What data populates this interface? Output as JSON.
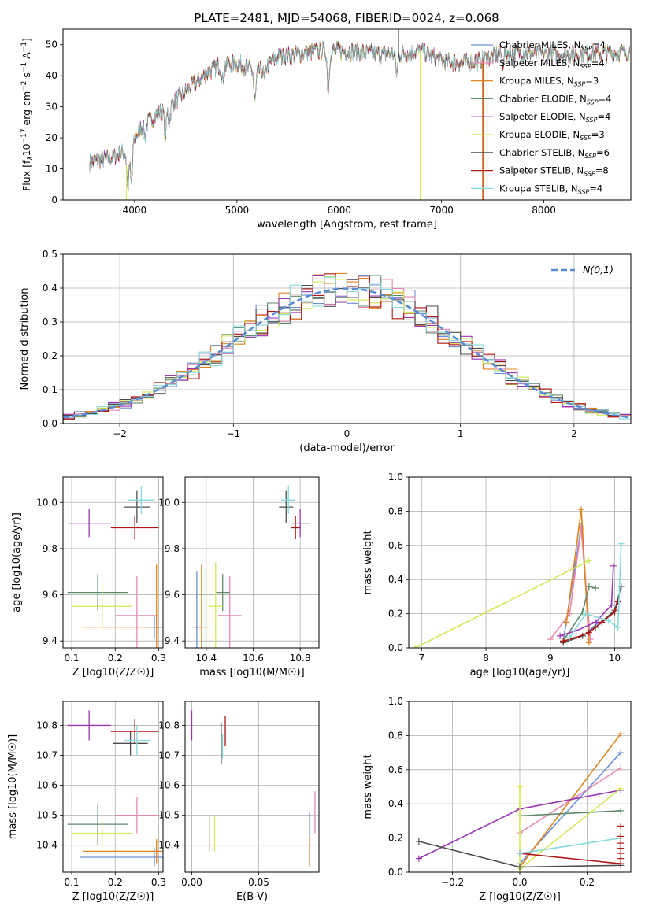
{
  "page_title": "PLATE=2481, MJD=54068, FIBERID=0024, z=0.068",
  "series_colors": {
    "chabrier_miles": "#6a8fd4",
    "salpeter_miles": "#e887b5",
    "kroupa_miles": "#e0821e",
    "chabrier_elodie": "#5f8a6a",
    "salpeter_elodie": "#9a34b5",
    "kroupa_elodie": "#d3e85a",
    "chabrier_stelib": "#4d4d4d",
    "salpeter_stelib": "#b01515",
    "kroupa_stelib": "#86d9dc"
  },
  "chart_data": [
    {
      "id": "spectrum",
      "type": "line",
      "xlabel": "wavelength [Angstrom, rest frame]",
      "ylabel": "Flux [f_λ10^-17 erg cm^-2 s^-1 A^-1]",
      "xlim": [
        3300,
        8850
      ],
      "ylim": [
        0,
        55
      ],
      "xticks": [
        4000,
        5000,
        6000,
        7000,
        8000
      ],
      "yticks": [
        0,
        10,
        20,
        30,
        40,
        50
      ],
      "grid": false,
      "legend_position": "right",
      "legend": [
        {
          "key": "chabrier_miles",
          "label": "Chabrier MILES, N",
          "n": "4"
        },
        {
          "key": "salpeter_miles",
          "label": "Salpeter MILES, N",
          "n": "4"
        },
        {
          "key": "kroupa_miles",
          "label": "Kroupa MILES, N",
          "n": "3"
        },
        {
          "key": "chabrier_elodie",
          "label": "Chabrier ELODIE, N",
          "n": "4"
        },
        {
          "key": "salpeter_elodie",
          "label": "Salpeter ELODIE, N",
          "n": "4"
        },
        {
          "key": "kroupa_elodie",
          "label": "Kroupa ELODIE, N",
          "n": "3"
        },
        {
          "key": "chabrier_stelib",
          "label": "Chabrier STELIB, N",
          "n": "6"
        },
        {
          "key": "salpeter_stelib",
          "label": "Salpeter STELIB, N",
          "n": "8"
        },
        {
          "key": "kroupa_stelib",
          "label": "Kroupa STELIB, N",
          "n": "4"
        }
      ],
      "legend_subscript": "SSP",
      "continuum": {
        "x": [
          3560,
          3800,
          3950,
          4050,
          4200,
          4400,
          4600,
          4800,
          5000,
          5200,
          5400,
          5600,
          5800,
          6000,
          6200,
          6400,
          6600,
          6800,
          7000,
          7200,
          7400,
          7600,
          7800,
          8000,
          8400,
          8800
        ],
        "y": [
          12,
          14,
          16,
          23,
          27,
          32,
          38,
          43,
          44,
          41,
          46,
          47,
          48,
          48,
          47.5,
          47,
          47,
          48,
          45,
          44,
          45,
          47.5,
          47.5,
          47,
          47,
          47.5
        ]
      },
      "absorption_lines": [
        {
          "x": 3934,
          "depth": 12
        },
        {
          "x": 3969,
          "depth": 12
        },
        {
          "x": 4102,
          "depth": 4
        },
        {
          "x": 4300,
          "depth": 9
        },
        {
          "x": 4340,
          "depth": 5
        },
        {
          "x": 4861,
          "depth": 5
        },
        {
          "x": 5175,
          "depth": 10
        },
        {
          "x": 5270,
          "depth": 4
        },
        {
          "x": 5893,
          "depth": 12
        },
        {
          "x": 6563,
          "depth": 6
        },
        {
          "x": 7600,
          "depth": 3
        }
      ],
      "spikes": [
        {
          "key": "kroupa_elodie",
          "x": 3920,
          "to": 0
        },
        {
          "key": "kroupa_elodie",
          "x": 6790,
          "to": 0
        },
        {
          "key": "salpeter_stelib",
          "x": 7405,
          "to": 0
        },
        {
          "key": "kroupa_miles",
          "x": 7400,
          "to": 0
        },
        {
          "key": "chabrier_stelib",
          "x": 6580,
          "to": 56
        }
      ]
    },
    {
      "id": "residuals",
      "type": "histogram",
      "xlabel": "(data-model)/error",
      "ylabel": "Normed distribution",
      "xlim": [
        -2.5,
        2.5
      ],
      "ylim": [
        0,
        0.5
      ],
      "xticks": [
        -2,
        -1,
        0,
        1,
        2
      ],
      "yticks": [
        0.0,
        0.1,
        0.2,
        0.3,
        0.4,
        0.5
      ],
      "grid": true,
      "legend_position": "top-right",
      "normal_label": "N(0,1)",
      "normal_color": "#5b8bd6",
      "bin_width": 0.1
    },
    {
      "id": "age_vs_Z",
      "type": "scatter",
      "xlabel": "Z [log10(Z/Z☉)]",
      "ylabel": "age [log10(age/yr)]",
      "xlim": [
        0.08,
        0.31
      ],
      "ylim": [
        9.37,
        10.11
      ],
      "xticks": [
        0.1,
        0.2,
        0.3
      ],
      "yticks": [
        9.4,
        9.6,
        9.8,
        10.0
      ],
      "grid": true,
      "points": [
        {
          "key": "chabrier_miles",
          "x": 0.29,
          "xerr": 0.02,
          "y": 9.46,
          "yerr": 0.05
        },
        {
          "key": "salpeter_miles",
          "x": 0.25,
          "xerr": 0.05,
          "y": 9.51,
          "yerr": 0.17
        },
        {
          "key": "kroupa_miles",
          "x": 0.295,
          "xerr": 0.17,
          "y": 9.46,
          "yerr": 0.27
        },
        {
          "key": "chabrier_elodie",
          "x": 0.16,
          "xerr": 0.07,
          "y": 9.61,
          "yerr": 0.08
        },
        {
          "key": "salpeter_elodie",
          "x": 0.14,
          "xerr": 0.05,
          "y": 9.91,
          "yerr": 0.06
        },
        {
          "key": "kroupa_elodie",
          "x": 0.17,
          "xerr": 0.07,
          "y": 9.55,
          "yerr": 0.1
        },
        {
          "key": "chabrier_stelib",
          "x": 0.25,
          "xerr": 0.03,
          "y": 9.98,
          "yerr": 0.07
        },
        {
          "key": "salpeter_stelib",
          "x": 0.245,
          "xerr": 0.055,
          "y": 9.89,
          "yerr": 0.05
        },
        {
          "key": "kroupa_stelib",
          "x": 0.26,
          "xerr": 0.03,
          "y": 10.01,
          "yerr": 0.06
        }
      ]
    },
    {
      "id": "age_vs_mass",
      "type": "scatter",
      "xlabel": "mass [log10(M/M☉)]",
      "ylabel": "",
      "xlim": [
        10.31,
        10.88
      ],
      "ylim": [
        9.37,
        10.11
      ],
      "xticks": [
        10.4,
        10.6,
        10.8
      ],
      "yticks": [
        9.4,
        9.6,
        9.8,
        10.0
      ],
      "grid": true,
      "points": [
        {
          "key": "chabrier_miles",
          "x": 10.36,
          "xerr": 0.02,
          "y": 9.46,
          "yerr": 0.24
        },
        {
          "key": "salpeter_miles",
          "x": 10.5,
          "xerr": 0.05,
          "y": 9.51,
          "yerr": 0.17
        },
        {
          "key": "kroupa_miles",
          "x": 10.38,
          "xerr": 0.03,
          "y": 9.46,
          "yerr": 0.27
        },
        {
          "key": "chabrier_elodie",
          "x": 10.47,
          "xerr": 0.03,
          "y": 9.61,
          "yerr": 0.08
        },
        {
          "key": "salpeter_elodie",
          "x": 10.8,
          "xerr": 0.04,
          "y": 9.91,
          "yerr": 0.06
        },
        {
          "key": "kroupa_elodie",
          "x": 10.44,
          "xerr": 0.03,
          "y": 9.55,
          "yerr": 0.19
        },
        {
          "key": "chabrier_stelib",
          "x": 10.74,
          "xerr": 0.03,
          "y": 9.98,
          "yerr": 0.07
        },
        {
          "key": "salpeter_stelib",
          "x": 10.78,
          "xerr": 0.02,
          "y": 9.89,
          "yerr": 0.05
        },
        {
          "key": "kroupa_stelib",
          "x": 10.75,
          "xerr": 0.03,
          "y": 10.01,
          "yerr": 0.06
        }
      ]
    },
    {
      "id": "weight_vs_age",
      "type": "line",
      "xlabel": "age [log10(age/yr)]",
      "ylabel": "mass weight",
      "xlim": [
        6.8,
        10.25
      ],
      "ylim": [
        0,
        1
      ],
      "xticks": [
        7,
        8,
        9,
        10
      ],
      "yticks": [
        0.0,
        0.2,
        0.4,
        0.6,
        0.8,
        1.0
      ],
      "grid": true,
      "series": [
        {
          "key": "chabrier_miles",
          "x": [
            9.2,
            9.48,
            9.6,
            9.75
          ],
          "y": [
            0.04,
            0.71,
            0.1,
            0.15
          ]
        },
        {
          "key": "salpeter_miles",
          "x": [
            9.0,
            9.3,
            9.48,
            9.62
          ],
          "y": [
            0.05,
            0.2,
            0.7,
            0.05
          ]
        },
        {
          "key": "kroupa_miles",
          "x": [
            9.25,
            9.48,
            9.6
          ],
          "y": [
            0.15,
            0.81,
            0.03
          ]
        },
        {
          "key": "chabrier_elodie",
          "x": [
            9.2,
            9.5,
            9.6,
            9.7
          ],
          "y": [
            0.04,
            0.21,
            0.36,
            0.35
          ]
        },
        {
          "key": "salpeter_elodie",
          "x": [
            9.15,
            9.4,
            9.7,
            9.95,
            9.98
          ],
          "y": [
            0.07,
            0.1,
            0.15,
            0.25,
            0.48
          ]
        },
        {
          "key": "kroupa_elodie",
          "x": [
            6.9,
            9.6
          ],
          "y": [
            0.0,
            0.51
          ]
        },
        {
          "key": "chabrier_stelib",
          "x": [
            9.2,
            9.5,
            9.7,
            10.0,
            10.1
          ],
          "y": [
            0.03,
            0.07,
            0.12,
            0.22,
            0.36
          ]
        },
        {
          "key": "salpeter_stelib",
          "x": [
            9.2,
            9.4,
            9.6,
            9.8,
            10.0,
            10.05
          ],
          "y": [
            0.04,
            0.06,
            0.09,
            0.15,
            0.21,
            0.27
          ]
        },
        {
          "key": "kroupa_stelib",
          "x": [
            9.3,
            9.55,
            9.9,
            10.05,
            10.1
          ],
          "y": [
            0.06,
            0.2,
            0.16,
            0.12,
            0.61
          ]
        }
      ]
    },
    {
      "id": "mass_vs_Z",
      "type": "scatter",
      "xlabel": "Z [log10(Z/Z☉)]",
      "ylabel": "mass [log10(M/M☉)]",
      "xlim": [
        0.08,
        0.31
      ],
      "ylim": [
        10.31,
        10.88
      ],
      "xticks": [
        0.1,
        0.2,
        0.3
      ],
      "yticks": [
        10.4,
        10.5,
        10.6,
        10.7,
        10.8
      ],
      "grid": true,
      "points": [
        {
          "key": "chabrier_miles",
          "x": 0.29,
          "xerr": 0.17,
          "y": 10.36,
          "yerr": 0.03
        },
        {
          "key": "salpeter_miles",
          "x": 0.25,
          "xerr": 0.05,
          "y": 10.5,
          "yerr": 0.06
        },
        {
          "key": "kroupa_miles",
          "x": 0.295,
          "xerr": 0.17,
          "y": 10.38,
          "yerr": 0.04
        },
        {
          "key": "chabrier_elodie",
          "x": 0.16,
          "xerr": 0.07,
          "y": 10.47,
          "yerr": 0.07
        },
        {
          "key": "salpeter_elodie",
          "x": 0.14,
          "xerr": 0.05,
          "y": 10.8,
          "yerr": 0.05
        },
        {
          "key": "kroupa_elodie",
          "x": 0.17,
          "xerr": 0.07,
          "y": 10.44,
          "yerr": 0.05
        },
        {
          "key": "chabrier_stelib",
          "x": 0.235,
          "xerr": 0.04,
          "y": 10.74,
          "yerr": 0.04
        },
        {
          "key": "salpeter_stelib",
          "x": 0.245,
          "xerr": 0.055,
          "y": 10.78,
          "yerr": 0.04
        },
        {
          "key": "kroupa_stelib",
          "x": 0.25,
          "xerr": 0.03,
          "y": 10.75,
          "yerr": 0.05
        }
      ]
    },
    {
      "id": "mass_vs_ebv",
      "type": "scatter",
      "xlabel": "E(B-V)",
      "ylabel": "",
      "xlim": [
        -0.005,
        0.095
      ],
      "ylim": [
        10.31,
        10.88
      ],
      "xticks": [
        0.0,
        0.05
      ],
      "yticks": [
        10.4,
        10.5,
        10.6,
        10.7,
        10.8
      ],
      "grid": true,
      "points": [
        {
          "key": "chabrier_miles",
          "x": 0.088,
          "xerr": 0,
          "y": 10.42,
          "yerr": 0.09
        },
        {
          "key": "salpeter_miles",
          "x": 0.092,
          "xerr": 0,
          "y": 10.51,
          "yerr": 0.07
        },
        {
          "key": "kroupa_miles",
          "x": 0.088,
          "xerr": 0,
          "y": 10.38,
          "yerr": 0.05
        },
        {
          "key": "chabrier_elodie",
          "x": 0.013,
          "xerr": 0,
          "y": 10.44,
          "yerr": 0.06
        },
        {
          "key": "salpeter_elodie",
          "x": 0.0,
          "xerr": 0,
          "y": 10.8,
          "yerr": 0.05
        },
        {
          "key": "kroupa_elodie",
          "x": 0.017,
          "xerr": 0,
          "y": 10.44,
          "yerr": 0.06
        },
        {
          "key": "chabrier_stelib",
          "x": 0.022,
          "xerr": 0,
          "y": 10.74,
          "yerr": 0.07
        },
        {
          "key": "salpeter_stelib",
          "x": 0.025,
          "xerr": 0,
          "y": 10.78,
          "yerr": 0.05
        },
        {
          "key": "kroupa_stelib",
          "x": 0.023,
          "xerr": 0,
          "y": 10.73,
          "yerr": 0.04
        }
      ]
    },
    {
      "id": "weight_vs_Z",
      "type": "line",
      "xlabel": "Z [log10(Z/Z☉)]",
      "ylabel": "mass weight",
      "xlim": [
        -0.33,
        0.33
      ],
      "ylim": [
        0,
        1
      ],
      "xticks": [
        -0.2,
        0.0,
        0.2
      ],
      "yticks": [
        0.0,
        0.2,
        0.4,
        0.6,
        0.8,
        1.0
      ],
      "grid": true,
      "series": [
        {
          "key": "chabrier_miles",
          "x": [
            0.0,
            0.3
          ],
          "y": [
            0.05,
            0.7
          ]
        },
        {
          "key": "salpeter_miles",
          "x": [
            0.0,
            0.3
          ],
          "y": [
            0.23,
            0.61
          ]
        },
        {
          "key": "kroupa_miles",
          "x": [
            0.0,
            0.3
          ],
          "y": [
            0.03,
            0.81
          ]
        },
        {
          "key": "chabrier_elodie",
          "x": [
            0.0,
            0.3
          ],
          "y": [
            0.33,
            0.36
          ]
        },
        {
          "key": "salpeter_elodie",
          "x": [
            -0.3,
            0.0,
            0.3
          ],
          "y": [
            0.08,
            0.37,
            0.48
          ]
        },
        {
          "key": "kroupa_elodie",
          "x": [
            0.0,
            0.0,
            0.3
          ],
          "y": [
            0.5,
            0.02,
            0.49
          ]
        },
        {
          "key": "chabrier_stelib",
          "x": [
            -0.3,
            0.0,
            0.3
          ],
          "y": [
            0.18,
            0.03,
            0.04
          ]
        },
        {
          "key": "salpeter_stelib",
          "x": [
            0.0,
            0.3
          ],
          "y": [
            0.11,
            0.05
          ]
        },
        {
          "key": "kroupa_stelib",
          "x": [
            0.0,
            0.3
          ],
          "y": [
            0.11,
            0.2
          ]
        }
      ],
      "markers_at_edge": {
        "x": 0.3,
        "salpeter_stelib_y": [
          0.05,
          0.08,
          0.11,
          0.14,
          0.17,
          0.21,
          0.27
        ]
      }
    }
  ]
}
